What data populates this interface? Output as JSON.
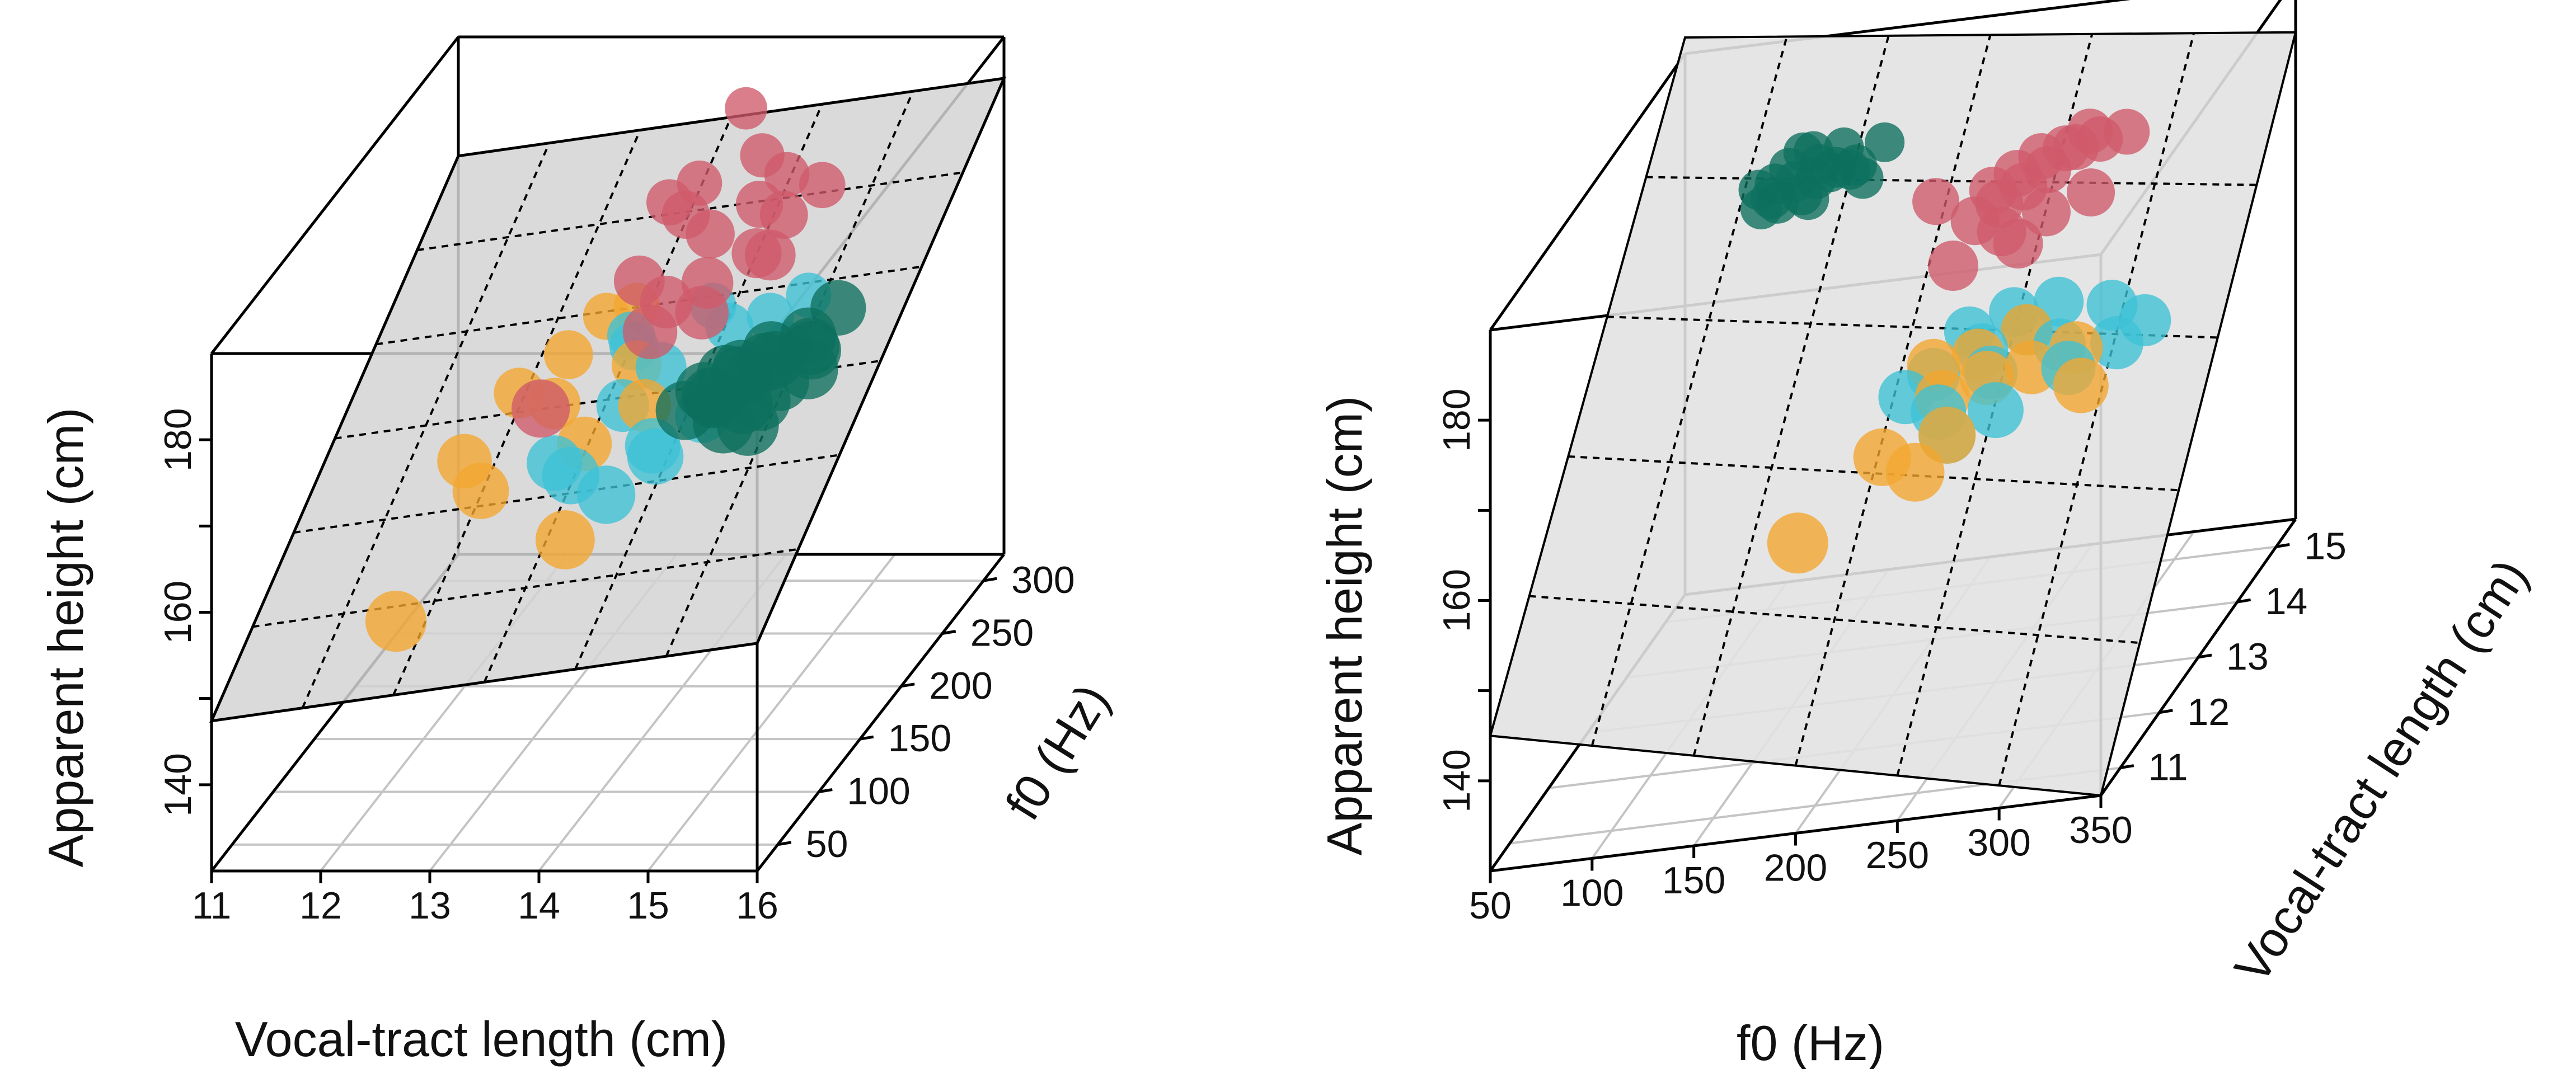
{
  "palette": {
    "teal": "#0d6f5e",
    "red": "#d05a6a",
    "cyan": "#3ec1d6",
    "orange": "#f3a630",
    "plane_fill": "#d4d4d4",
    "plane_fill_light": "#e2e2e2"
  },
  "chart_data": [
    {
      "type": "scatter3d",
      "xlabel": "Vocal-tract length (cm)",
      "ylabel": "f0 (Hz)",
      "zlabel": "Apparent height (cm)",
      "xlim": [
        11,
        16
      ],
      "ylim": [
        25,
        325
      ],
      "zlim": [
        130,
        190
      ],
      "xticks": [
        11,
        12,
        13,
        14,
        15,
        16
      ],
      "yticks": [
        50,
        100,
        150,
        200,
        250,
        300
      ],
      "zticks": [
        140,
        160,
        180
      ],
      "xtick_labels": [
        "11",
        "12",
        "13",
        "14",
        "15",
        "16"
      ],
      "ytick_labels": [
        "50",
        "100",
        "150",
        "200",
        "250",
        "300"
      ],
      "ztick_labels": [
        "140",
        "160",
        "180"
      ],
      "fit_plane": "regression plane (tilted, dashed mesh)",
      "series": [
        {
          "color": "teal",
          "points": [
            [
              15.0,
              120,
              176
            ],
            [
              15.2,
              110,
              177
            ],
            [
              15.4,
              115,
              178
            ],
            [
              15.6,
              105,
              177
            ],
            [
              15.8,
              118,
              179
            ],
            [
              15.3,
              100,
              175
            ],
            [
              15.1,
              125,
              176
            ],
            [
              14.9,
              115,
              174
            ],
            [
              15.5,
              95,
              176
            ],
            [
              15.7,
              130,
              178
            ],
            [
              15.0,
              105,
              175
            ],
            [
              14.8,
              120,
              174
            ],
            [
              15.4,
              125,
              177
            ],
            [
              15.9,
              100,
              179
            ],
            [
              15.6,
              140,
              178
            ],
            [
              15.2,
              90,
              174
            ],
            [
              14.7,
              110,
              173
            ],
            [
              15.3,
              135,
              177
            ],
            [
              15.8,
              150,
              180
            ],
            [
              15.5,
              80,
              175
            ]
          ]
        },
        {
          "color": "red",
          "points": [
            [
              13.8,
              230,
              181
            ],
            [
              14.1,
              220,
              180
            ],
            [
              14.4,
              240,
              181
            ],
            [
              14.6,
              210,
              179
            ],
            [
              13.6,
              200,
              177
            ],
            [
              14.0,
              180,
              177
            ],
            [
              14.3,
              190,
              178
            ],
            [
              14.8,
              200,
              180
            ],
            [
              13.5,
              250,
              180
            ],
            [
              14.2,
              270,
              183
            ],
            [
              14.5,
              260,
              182
            ],
            [
              13.9,
              290,
              186
            ],
            [
              14.7,
              230,
              181
            ],
            [
              13.3,
              120,
              172
            ],
            [
              14.0,
              160,
              176
            ],
            [
              14.4,
              170,
              177
            ],
            [
              13.7,
              260,
              181
            ],
            [
              14.9,
              250,
              182
            ]
          ]
        },
        {
          "color": "cyan",
          "points": [
            [
              13.4,
              220,
              167
            ],
            [
              13.8,
              200,
              167
            ],
            [
              14.2,
              230,
              168
            ],
            [
              13.9,
              250,
              168
            ],
            [
              14.5,
              240,
              168
            ],
            [
              14.7,
              260,
              168
            ],
            [
              13.6,
              180,
              165
            ],
            [
              14.1,
              150,
              164
            ],
            [
              14.6,
              200,
              166
            ],
            [
              13.2,
              150,
              162
            ],
            [
              13.5,
              130,
              163
            ],
            [
              13.9,
              120,
              162
            ],
            [
              14.2,
              140,
              164
            ],
            [
              14.8,
              220,
              167
            ],
            [
              13.3,
              230,
              167
            ],
            [
              14.4,
              170,
              165
            ]
          ]
        },
        {
          "color": "orange",
          "points": [
            [
              12.5,
              200,
              164
            ],
            [
              12.8,
              220,
              166
            ],
            [
              13.0,
              240,
              168
            ],
            [
              13.5,
              210,
              166
            ],
            [
              12.3,
              160,
              161
            ],
            [
              12.6,
              140,
              160
            ],
            [
              13.8,
              180,
              165
            ],
            [
              13.6,
              110,
              158
            ],
            [
              12.2,
              90,
              151
            ],
            [
              13.2,
              250,
              168
            ],
            [
              12.9,
              190,
              164
            ],
            [
              13.4,
              160,
              163
            ]
          ]
        }
      ]
    },
    {
      "type": "scatter3d",
      "xlabel": "f0 (Hz)",
      "ylabel": "Vocal-tract length (cm)",
      "zlabel": "Apparent height (cm)",
      "xlim": [
        50,
        350
      ],
      "ylim": [
        10.5,
        15.5
      ],
      "zlim": [
        130,
        190
      ],
      "xticks": [
        50,
        100,
        150,
        200,
        250,
        300,
        350
      ],
      "yticks": [
        11,
        12,
        13,
        14,
        15
      ],
      "zticks": [
        140,
        160,
        180
      ],
      "xtick_labels": [
        "50",
        "100",
        "150",
        "200",
        "250",
        "300",
        "350"
      ],
      "ytick_labels": [
        "11",
        "12",
        "13",
        "14",
        "15"
      ],
      "ztick_labels": [
        "140",
        "160",
        "180"
      ],
      "fit_plane": "regression plane (shaded, dashed grid)",
      "series": [
        {
          "color": "teal",
          "points": [
            [
              110,
              15.2,
              176
            ],
            [
              120,
              15.3,
              177
            ],
            [
              100,
              15.1,
              175
            ],
            [
              130,
              15.2,
              177
            ],
            [
              115,
              15.4,
              178
            ],
            [
              105,
              15.0,
              175
            ],
            [
              125,
              15.3,
              176
            ],
            [
              140,
              15.2,
              177
            ],
            [
              95,
              15.1,
              174
            ],
            [
              110,
              15.4,
              178
            ],
            [
              120,
              15.0,
              175
            ],
            [
              135,
              15.3,
              176
            ],
            [
              100,
              15.2,
              176
            ],
            [
              115,
              15.1,
              175
            ],
            [
              90,
              15.3,
              175
            ],
            [
              130,
              15.4,
              178
            ],
            [
              145,
              15.1,
              176
            ],
            [
              105,
              15.3,
              177
            ],
            [
              120,
              15.2,
              176
            ],
            [
              150,
              15.4,
              178
            ]
          ]
        },
        {
          "color": "red",
          "points": [
            [
              240,
              14.1,
              180
            ],
            [
              250,
              14.2,
              181
            ],
            [
              230,
              14.0,
              179
            ],
            [
              260,
              14.3,
              181
            ],
            [
              245,
              14.0,
              179
            ],
            [
              270,
              14.4,
              182
            ],
            [
              235,
              13.9,
              178
            ],
            [
              255,
              14.1,
              180
            ],
            [
              225,
              13.8,
              177
            ],
            [
              265,
              14.3,
              181
            ],
            [
              275,
              14.4,
              181
            ],
            [
              200,
              14.1,
              178
            ],
            [
              290,
              14.3,
              182
            ],
            [
              240,
              13.7,
              176
            ],
            [
              260,
              13.8,
              177
            ],
            [
              250,
              13.6,
              175
            ],
            [
              220,
              13.5,
              174
            ],
            [
              280,
              13.9,
              178
            ]
          ]
        },
        {
          "color": "cyan",
          "points": [
            [
              230,
              13.4,
              167
            ],
            [
              250,
              13.5,
              168
            ],
            [
              240,
              13.2,
              166
            ],
            [
              260,
              13.3,
              167
            ],
            [
              220,
              13.0,
              165
            ],
            [
              270,
              13.6,
              168
            ],
            [
              210,
              12.8,
              164
            ],
            [
              250,
              12.9,
              165
            ],
            [
              280,
              13.1,
              166
            ],
            [
              300,
              13.4,
              168
            ],
            [
              230,
              12.6,
              163
            ],
            [
              260,
              12.5,
              163
            ],
            [
              290,
              12.8,
              165
            ],
            [
              310,
              13.0,
              166
            ],
            [
              240,
              12.3,
              162
            ],
            [
              320,
              13.2,
              167
            ]
          ]
        },
        {
          "color": "orange",
          "points": [
            [
              220,
              13.0,
              166
            ],
            [
              240,
              13.1,
              166
            ],
            [
              260,
              13.3,
              167
            ],
            [
              230,
              12.7,
              164
            ],
            [
              250,
              12.8,
              165
            ],
            [
              270,
              12.9,
              165
            ],
            [
              210,
              12.2,
              161
            ],
            [
              240,
              12.3,
              162
            ],
            [
              230,
              12.0,
              160
            ],
            [
              290,
              13.0,
              166
            ],
            [
              300,
              12.6,
              164
            ],
            [
              180,
              11.6,
              156
            ]
          ]
        }
      ]
    }
  ]
}
